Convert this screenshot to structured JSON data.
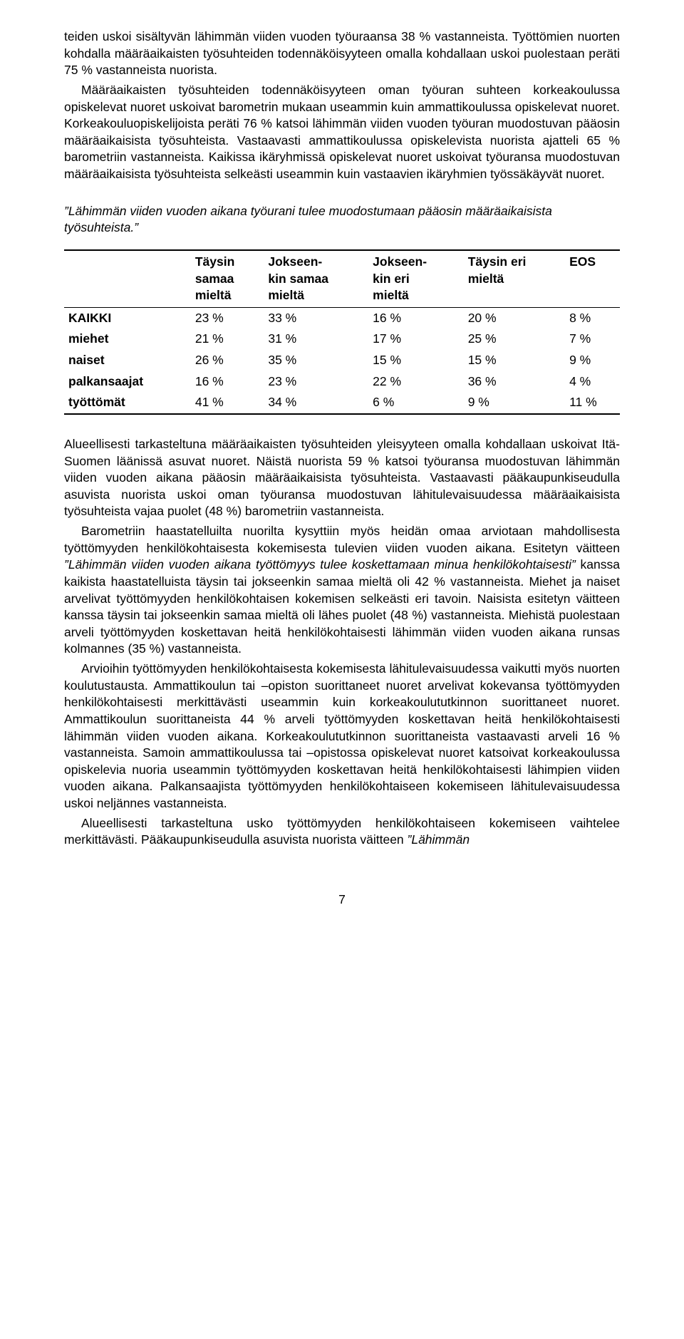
{
  "para1": "teiden uskoi sisältyvän lähimmän viiden vuoden työuraansa 38 % vastanneista. Työttömien nuorten kohdalla määräaikaisten työsuhteiden todennäköisyyteen omalla kohdallaan uskoi puolestaan peräti 75 % vastanneista nuorista.",
  "para2": "Määräaikaisten työsuhteiden todennäköisyyteen oman työuran suhteen korkeakoulussa opiskelevat nuoret uskoivat barometrin mukaan useammin kuin ammattikoulussa opiskelevat nuoret. Korkeakouluopiskelijoista peräti 76 % katsoi lähimmän viiden vuoden työuran muodostuvan pääosin määräaikaisista työsuhteista. Vastaavasti ammattikoulussa opiskelevista nuorista ajatteli 65 % barometriin vastanneista. Kaikissa ikäryhmissä opiskelevat nuoret uskoivat työuransa muodostuvan määräaikaisista työsuhteista selkeästi useammin kuin vastaavien ikäryhmien työssäkäyvät nuoret.",
  "quote": "”Lähimmän viiden vuoden aikana työurani tulee muodostumaan pääosin määräaikaisista työsuhteista.”",
  "table": {
    "columns": [
      {
        "label_l1": "",
        "label_l2": "",
        "label_l3": ""
      },
      {
        "label_l1": "Täysin",
        "label_l2": "samaa",
        "label_l3": "mieltä"
      },
      {
        "label_l1": "Jokseen-",
        "label_l2": "kin samaa",
        "label_l3": "mieltä"
      },
      {
        "label_l1": "Jokseen-",
        "label_l2": "kin eri",
        "label_l3": "mieltä"
      },
      {
        "label_l1": "Täysin eri",
        "label_l2": "mieltä",
        "label_l3": ""
      },
      {
        "label_l1": "EOS",
        "label_l2": "",
        "label_l3": ""
      }
    ],
    "rows": [
      {
        "label": "KAIKKI",
        "c1": "23 %",
        "c2": "33 %",
        "c3": "16 %",
        "c4": "20 %",
        "c5": "8 %"
      },
      {
        "label": "miehet",
        "c1": "21 %",
        "c2": "31 %",
        "c3": "17 %",
        "c4": "25 %",
        "c5": "7 %"
      },
      {
        "label": "naiset",
        "c1": "26 %",
        "c2": "35 %",
        "c3": "15 %",
        "c4": "15 %",
        "c5": "9 %"
      },
      {
        "label": "palkansaajat",
        "c1": "16 %",
        "c2": "23 %",
        "c3": "22 %",
        "c4": "36 %",
        "c5": "4 %"
      },
      {
        "label": "työttömät",
        "c1": "41 %",
        "c2": "34 %",
        "c3": "6 %",
        "c4": "9 %",
        "c5": "11 %"
      }
    ]
  },
  "para3": "Alueellisesti tarkasteltuna määräaikaisten työsuhteiden yleisyyteen omalla kohdallaan uskoivat Itä-Suomen läänissä asuvat nuoret. Näistä nuorista 59 % katsoi työuransa muodostuvan lähimmän viiden vuoden aikana pääosin määräaikaisista työsuhteista. Vastaavasti pääkaupunkiseudulla asuvista nuorista uskoi oman työuransa muodostuvan lähitulevaisuudessa määräaikaisista työsuhteista vajaa puolet (48 %) barometriin vastanneista.",
  "para4a": "Barometriin haastatelluilta nuorilta kysyttiin myös heidän omaa arviotaan mahdollisesta työttömyyden henkilökohtaisesta kokemisesta tulevien viiden vuoden aikana. Esitetyn väitteen ",
  "para4i": "”Lähimmän viiden vuoden aikana työttömyys tulee koskettamaan minua henkilökohtaisesti”",
  "para4b": " kanssa kaikista haastatelluista täysin tai jokseenkin samaa mieltä oli 42 % vastanneista. Miehet ja naiset arvelivat työttömyyden henkilökohtaisen kokemisen selkeästi eri tavoin. Naisista esitetyn väitteen kanssa täysin tai jokseenkin samaa mieltä oli lähes puolet (48 %) vastanneista. Miehistä puolestaan arveli työttömyyden koskettavan heitä henkilökohtaisesti lähimmän viiden vuoden aikana runsas kolmannes (35 %) vastanneista.",
  "para5": "Arvioihin työttömyyden henkilökohtaisesta kokemisesta lähitulevaisuudessa vaikutti myös nuorten koulutustausta. Ammattikoulun tai –opiston suorittaneet nuoret arvelivat kokevansa työttömyyden henkilökohtaisesti merkittävästi useammin kuin korkeakoulututkinnon suorittaneet nuoret. Ammattikoulun suorittaneista 44 % arveli työttömyyden koskettavan heitä henkilökohtaisesti lähimmän viiden vuoden aikana. Korkeakoulututkinnon suorittaneista vastaavasti arveli 16 % vastanneista. Samoin ammattikoulussa tai –opistossa opiskelevat nuoret katsoivat korkeakoulussa opiskelevia nuoria useammin työttömyyden koskettavan heitä henkilökohtaisesti lähimpien viiden vuoden aikana. Palkansaajista työttömyyden henkilökohtaiseen kokemiseen lähitulevaisuudessa uskoi neljännes vastanneista.",
  "para6a": "Alueellisesti tarkasteltuna usko työttömyyden henkilökohtaiseen kokemiseen vaihtelee merkittävästi. Pääkaupunkiseudulla asuvista nuorista väitteen ",
  "para6i": "”Lähimmän",
  "pagenum": "7"
}
